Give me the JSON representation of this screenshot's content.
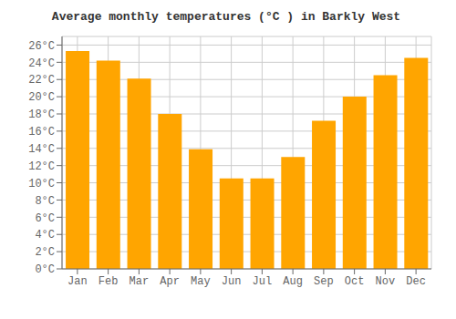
{
  "chart_data": {
    "type": "bar",
    "title": "Average monthly temperatures (°C ) in Barkly West",
    "categories": [
      "Jan",
      "Feb",
      "Mar",
      "Apr",
      "May",
      "Jun",
      "Jul",
      "Aug",
      "Sep",
      "Oct",
      "Nov",
      "Dec"
    ],
    "values": [
      25.3,
      24.2,
      22.1,
      18.0,
      13.9,
      10.5,
      10.5,
      13.0,
      17.2,
      20.0,
      22.5,
      24.5
    ],
    "color": "#FFA500",
    "ylim": [
      0,
      27
    ],
    "yticks": [
      {
        "value": 0,
        "label": "0°C"
      },
      {
        "value": 2,
        "label": "2°C"
      },
      {
        "value": 4,
        "label": "4°C"
      },
      {
        "value": 6,
        "label": "6°C"
      },
      {
        "value": 8,
        "label": "8°C"
      },
      {
        "value": 10,
        "label": "10°C"
      },
      {
        "value": 12,
        "label": "12°C"
      },
      {
        "value": 14,
        "label": "14°C"
      },
      {
        "value": 16,
        "label": "16°C"
      },
      {
        "value": 18,
        "label": "18°C"
      },
      {
        "value": 20,
        "label": "20°C"
      },
      {
        "value": 22,
        "label": "22°C"
      },
      {
        "value": 24,
        "label": "24°C"
      },
      {
        "value": 26,
        "label": "26°C"
      }
    ],
    "grid": true
  }
}
